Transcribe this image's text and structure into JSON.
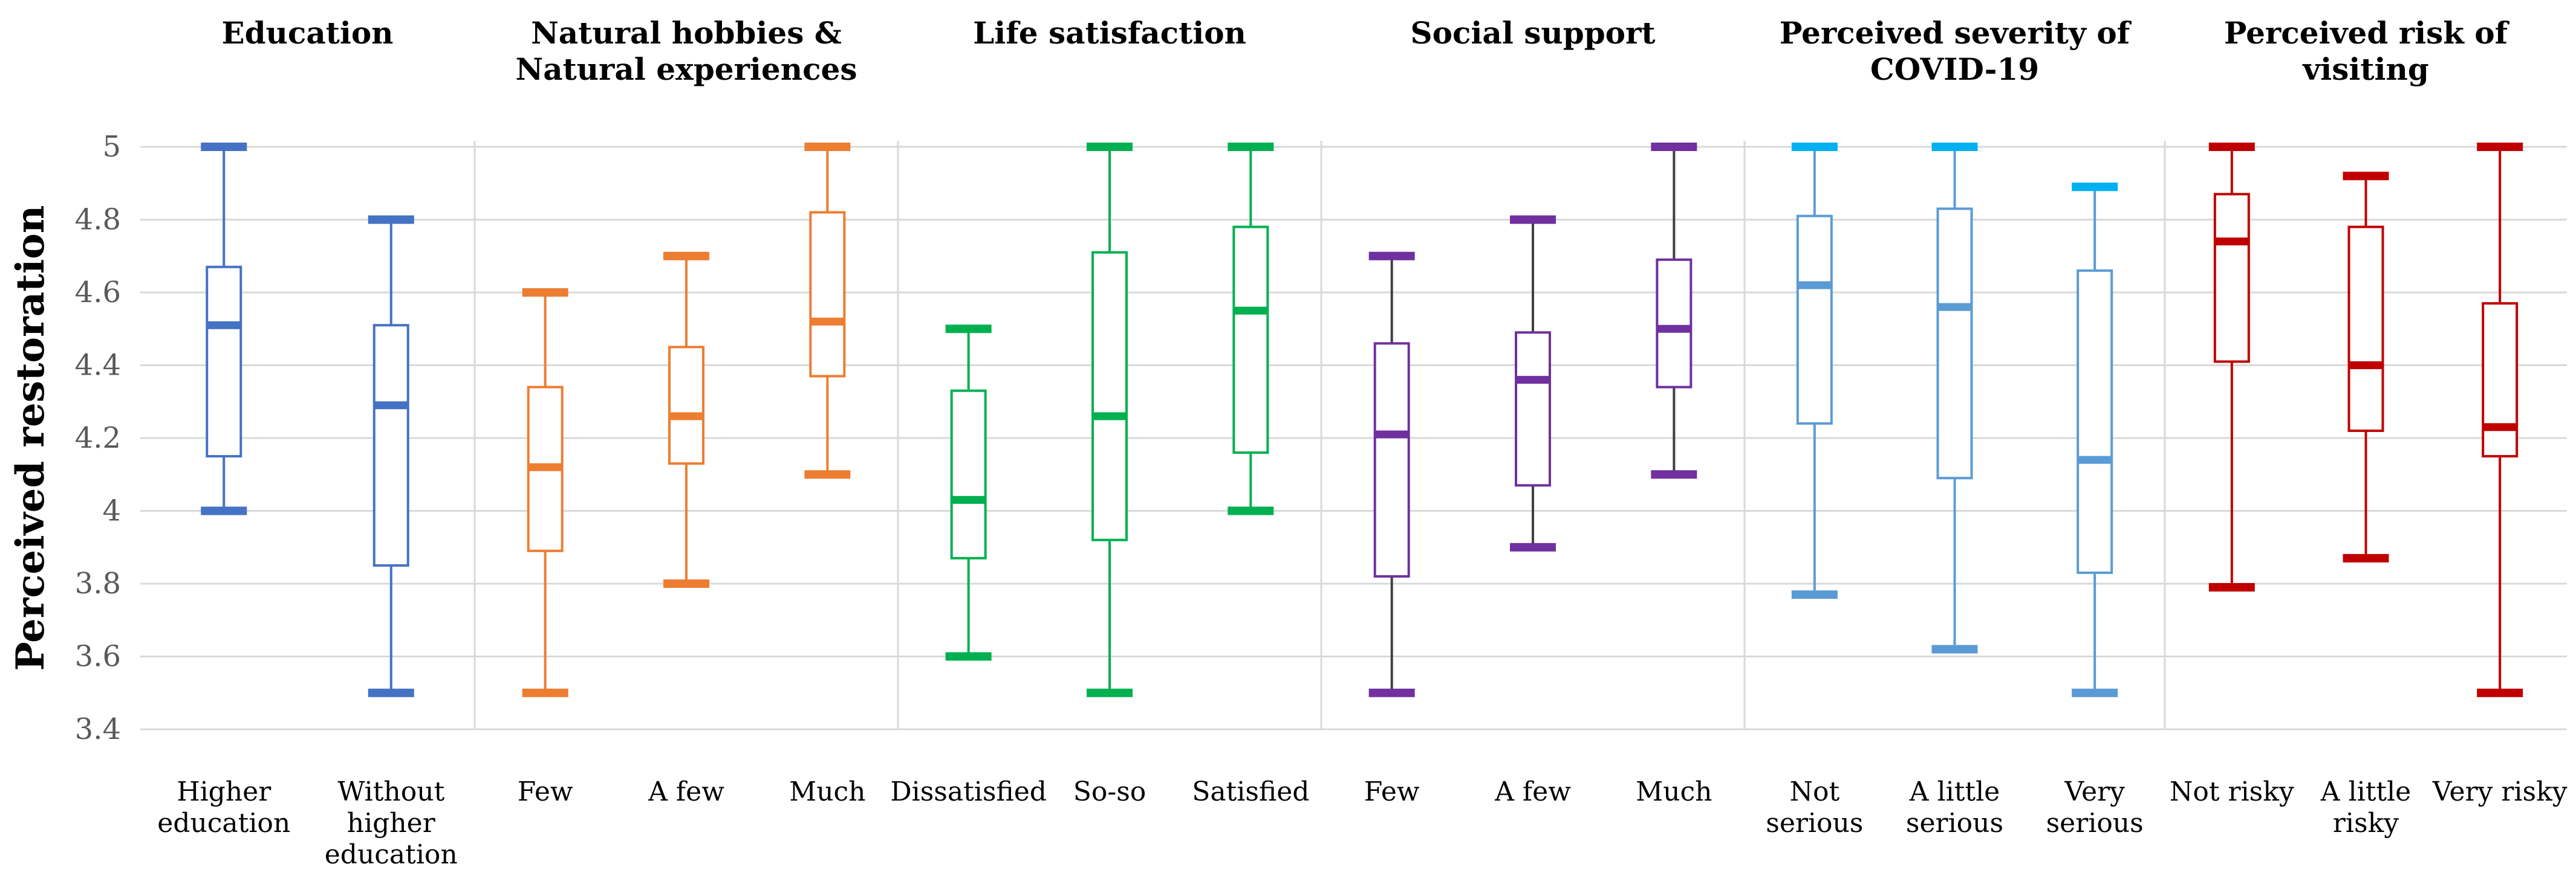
{
  "chart_data": {
    "type": "boxplot",
    "ylabel": "Perceived restoration",
    "ylim": [
      3.4,
      5.0
    ],
    "yticks": [
      "3.4",
      "3.6",
      "3.8",
      "4",
      "4.2",
      "4.4",
      "4.6",
      "4.8",
      "5"
    ],
    "grid": true,
    "panels": [
      {
        "title": [
          "Education"
        ],
        "color": "#4472C4",
        "whisker_color": "#4472C4",
        "groups": [
          {
            "label": [
              "Higher",
              "education"
            ],
            "min": 4.0,
            "q1": 4.15,
            "median": 4.51,
            "q3": 4.67,
            "max": 5.0
          },
          {
            "label": [
              "Without",
              "higher",
              "education"
            ],
            "min": 3.5,
            "q1": 3.85,
            "median": 4.29,
            "q3": 4.51,
            "max": 4.8
          }
        ]
      },
      {
        "title": [
          "Natural hobbies &",
          "Natural experiences"
        ],
        "color": "#ED7D31",
        "whisker_color": "#ED7D31",
        "groups": [
          {
            "label": [
              "Few"
            ],
            "min": 3.5,
            "q1": 3.89,
            "median": 4.12,
            "q3": 4.34,
            "max": 4.6
          },
          {
            "label": [
              "A few"
            ],
            "min": 3.8,
            "q1": 4.13,
            "median": 4.26,
            "q3": 4.45,
            "max": 4.7
          },
          {
            "label": [
              "Much"
            ],
            "min": 4.1,
            "q1": 4.37,
            "median": 4.52,
            "q3": 4.82,
            "max": 5.0
          }
        ]
      },
      {
        "title": [
          "Life satisfaction"
        ],
        "color": "#00B050",
        "whisker_color": "#00B050",
        "groups": [
          {
            "label": [
              "Dissatisfied"
            ],
            "min": 3.6,
            "q1": 3.87,
            "median": 4.03,
            "q3": 4.33,
            "max": 4.5
          },
          {
            "label": [
              "So-so"
            ],
            "min": 3.5,
            "q1": 3.92,
            "median": 4.26,
            "q3": 4.71,
            "max": 5.0
          },
          {
            "label": [
              "Satisfied"
            ],
            "min": 4.0,
            "q1": 4.16,
            "median": 4.55,
            "q3": 4.78,
            "max": 5.0
          }
        ]
      },
      {
        "title": [
          "Social support"
        ],
        "color": "#7030A0",
        "whisker_color": "#404040",
        "groups": [
          {
            "label": [
              "Few"
            ],
            "min": 3.5,
            "q1": 3.82,
            "median": 4.21,
            "q3": 4.46,
            "max": 4.7
          },
          {
            "label": [
              "A few"
            ],
            "min": 3.9,
            "q1": 4.07,
            "median": 4.36,
            "q3": 4.49,
            "max": 4.8
          },
          {
            "label": [
              "Much"
            ],
            "min": 4.1,
            "q1": 4.34,
            "median": 4.5,
            "q3": 4.69,
            "max": 5.0
          }
        ]
      },
      {
        "title": [
          "Perceived severity of",
          "COVID-19"
        ],
        "color": "#5B9BD5",
        "whisker_color": "#5B9BD5",
        "groups": [
          {
            "label": [
              "Not",
              "serious"
            ],
            "min": 3.77,
            "q1": 4.24,
            "median": 4.62,
            "q3": 4.81,
            "max": 5.0,
            "cap_color": "#00B0F0"
          },
          {
            "label": [
              "A little",
              "serious"
            ],
            "min": 3.62,
            "q1": 4.09,
            "median": 4.56,
            "q3": 4.83,
            "max": 5.0,
            "cap_color": "#00B0F0"
          },
          {
            "label": [
              "Very",
              "serious"
            ],
            "min": 3.5,
            "q1": 3.83,
            "median": 4.14,
            "q3": 4.66,
            "max": 4.89,
            "cap_color": "#00B0F0"
          }
        ]
      },
      {
        "title": [
          "Perceived risk of",
          "visiting"
        ],
        "color": "#C00000",
        "whisker_color": "#C00000",
        "groups": [
          {
            "label": [
              "Not risky"
            ],
            "min": 3.79,
            "q1": 4.41,
            "median": 4.74,
            "q3": 4.87,
            "max": 5.0
          },
          {
            "label": [
              "A little",
              "risky"
            ],
            "min": 3.87,
            "q1": 4.22,
            "median": 4.4,
            "q3": 4.78,
            "max": 4.92
          },
          {
            "label": [
              "Very risky"
            ],
            "min": 3.5,
            "q1": 4.15,
            "median": 4.23,
            "q3": 4.57,
            "max": 5.0
          }
        ]
      }
    ]
  }
}
